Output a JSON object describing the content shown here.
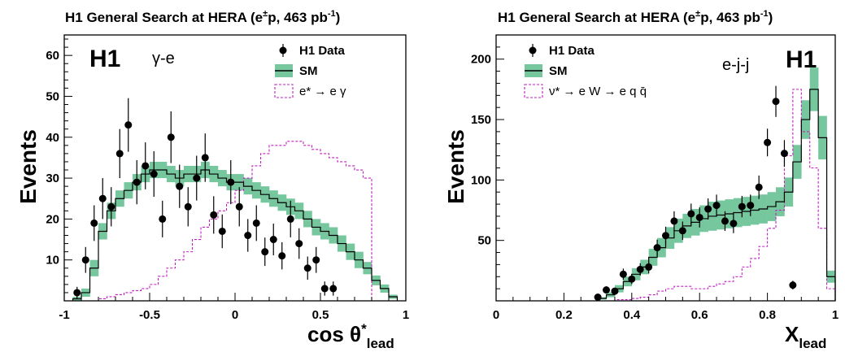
{
  "colors": {
    "sm_band": "#77c79e",
    "sm_line": "#000000",
    "signal": "#c020c0",
    "data": "#000000"
  },
  "chart_data": [
    {
      "type": "histogram",
      "title_main": "H1 General Search at HERA (e",
      "title_sup1": "±",
      "title_mid": "p, 463 pb",
      "title_sup2": "-1",
      "title_end": ")",
      "experiment_label": "H1",
      "channel_label": "γ-e",
      "ylabel": "Events",
      "xlabel_main": "cos θ",
      "xlabel_sup": "*",
      "xlabel_sub": "lead",
      "xlim": [
        -1,
        1
      ],
      "ylim": [
        0,
        65
      ],
      "xticks": [
        -1,
        -0.5,
        0,
        0.5,
        1
      ],
      "xtick_labels": [
        "-1",
        "-0.5",
        "0",
        "0.5",
        "1"
      ],
      "yticks": [
        10,
        20,
        30,
        40,
        50,
        60
      ],
      "ytick_labels": [
        "10",
        "20",
        "30",
        "40",
        "50",
        "60"
      ],
      "legend": [
        {
          "kind": "data",
          "label": "H1 Data"
        },
        {
          "kind": "sm",
          "label": "SM"
        },
        {
          "kind": "signal",
          "label": "e* → e γ"
        }
      ],
      "bin_edges": [
        -0.95,
        -0.9,
        -0.85,
        -0.8,
        -0.75,
        -0.7,
        -0.65,
        -0.6,
        -0.55,
        -0.5,
        -0.45,
        -0.4,
        -0.35,
        -0.3,
        -0.25,
        -0.2,
        -0.15,
        -0.1,
        -0.05,
        0,
        0.05,
        0.1,
        0.15,
        0.2,
        0.25,
        0.3,
        0.35,
        0.4,
        0.45,
        0.5,
        0.55,
        0.6,
        0.65,
        0.7,
        0.75,
        0.8,
        0.85,
        0.9,
        0.95
      ],
      "sm": [
        0.5,
        2,
        8,
        17,
        22,
        25,
        27,
        29,
        31,
        32,
        32,
        31,
        30,
        31,
        31,
        32,
        31,
        30,
        29,
        29,
        28,
        27,
        26,
        25,
        24,
        23,
        22,
        20,
        18,
        17,
        16,
        14,
        12,
        10,
        8,
        5,
        3,
        1
      ],
      "sm_err": [
        0.5,
        1,
        2,
        2,
        2,
        2,
        2,
        2,
        2,
        2,
        2,
        2,
        2,
        2,
        2,
        2,
        2,
        2,
        2,
        2,
        2,
        2,
        2,
        2,
        2,
        2,
        2,
        2,
        2,
        2,
        2,
        2,
        2,
        2,
        1.5,
        1.2,
        1,
        0.5
      ],
      "signal": [
        0,
        0,
        0,
        0.5,
        1,
        1.5,
        2,
        2.5,
        3,
        4,
        6,
        8,
        10,
        12,
        15,
        18,
        20,
        22,
        24,
        27,
        30,
        33,
        36,
        38,
        38,
        39,
        39,
        38,
        37,
        36,
        35,
        34,
        33,
        32,
        30,
        0,
        0,
        0
      ],
      "data_x": [
        -0.925,
        -0.875,
        -0.825,
        -0.775,
        -0.725,
        -0.675,
        -0.625,
        -0.575,
        -0.525,
        -0.475,
        -0.425,
        -0.375,
        -0.325,
        -0.275,
        -0.225,
        -0.175,
        -0.125,
        -0.075,
        -0.025,
        0.025,
        0.075,
        0.125,
        0.175,
        0.225,
        0.275,
        0.325,
        0.375,
        0.425,
        0.475,
        0.525,
        0.575,
        0.625,
        0.675,
        0.725,
        0.775,
        0.825,
        0.875,
        0.925
      ],
      "data_y": [
        2,
        10,
        19,
        25,
        23,
        36,
        43,
        29,
        33,
        31,
        20,
        40,
        28,
        23,
        30,
        35,
        21,
        17,
        29,
        23,
        16,
        19,
        12,
        15,
        11,
        20,
        14,
        8,
        10,
        3,
        3,
        0,
        0,
        0,
        0,
        0,
        0,
        0
      ]
    },
    {
      "type": "histogram",
      "title_main": "H1 General Search at HERA (e",
      "title_sup1": "±",
      "title_mid": "p, 463 pb",
      "title_sup2": "-1",
      "title_end": ")",
      "experiment_label": "H1",
      "channel_label": "e-j-j",
      "ylabel": "Events",
      "xlabel_main": "X",
      "xlabel_sub": "lead",
      "xlim": [
        0,
        1
      ],
      "ylim": [
        0,
        220
      ],
      "xticks": [
        0,
        0.2,
        0.4,
        0.6,
        0.8,
        1
      ],
      "xtick_labels": [
        "0",
        "0.2",
        "0.4",
        "0.6",
        "0.8",
        "1"
      ],
      "yticks": [
        50,
        100,
        150,
        200
      ],
      "ytick_labels": [
        "50",
        "100",
        "150",
        "200"
      ],
      "legend": [
        {
          "kind": "data",
          "label": "H1 Data"
        },
        {
          "kind": "sm",
          "label": "SM"
        },
        {
          "kind": "signal",
          "label": "ν* → e W → e q q̄"
        }
      ],
      "bin_edges": [
        0.3,
        0.325,
        0.35,
        0.375,
        0.4,
        0.425,
        0.45,
        0.475,
        0.5,
        0.525,
        0.55,
        0.575,
        0.6,
        0.625,
        0.65,
        0.675,
        0.7,
        0.725,
        0.75,
        0.775,
        0.8,
        0.825,
        0.85,
        0.875,
        0.9,
        0.925,
        0.95,
        0.975,
        1.0
      ],
      "sm": [
        2,
        5,
        10,
        16,
        22,
        28,
        36,
        44,
        52,
        58,
        62,
        65,
        68,
        70,
        71,
        72,
        73,
        74,
        75,
        76,
        78,
        82,
        90,
        115,
        150,
        175,
        135,
        20
      ],
      "sm_err": [
        1,
        2,
        3,
        4,
        5,
        6,
        7,
        8,
        9,
        10,
        10,
        11,
        11,
        12,
        12,
        12,
        12,
        12,
        12,
        12,
        12,
        12,
        12,
        14,
        16,
        18,
        18,
        5
      ],
      "signal": [
        0,
        0,
        1,
        1,
        2,
        3,
        5,
        8,
        10,
        12,
        12,
        10,
        10,
        12,
        14,
        16,
        20,
        28,
        35,
        45,
        60,
        75,
        120,
        175,
        140,
        110,
        60,
        10
      ],
      "data_x": [
        0.3,
        0.325,
        0.35,
        0.375,
        0.4,
        0.425,
        0.45,
        0.475,
        0.5,
        0.525,
        0.55,
        0.575,
        0.6,
        0.625,
        0.65,
        0.675,
        0.7,
        0.725,
        0.75,
        0.775,
        0.8,
        0.825,
        0.85,
        0.875,
        0.9,
        0.925,
        0.95,
        0.975,
        1.0
      ],
      "data_y": [
        3,
        9,
        8,
        22,
        18,
        26,
        28,
        44,
        54,
        66,
        58,
        72,
        69,
        76,
        79,
        66,
        64,
        78,
        79,
        94,
        131,
        165,
        122,
        13,
        0,
        0,
        0,
        0,
        0
      ]
    }
  ]
}
